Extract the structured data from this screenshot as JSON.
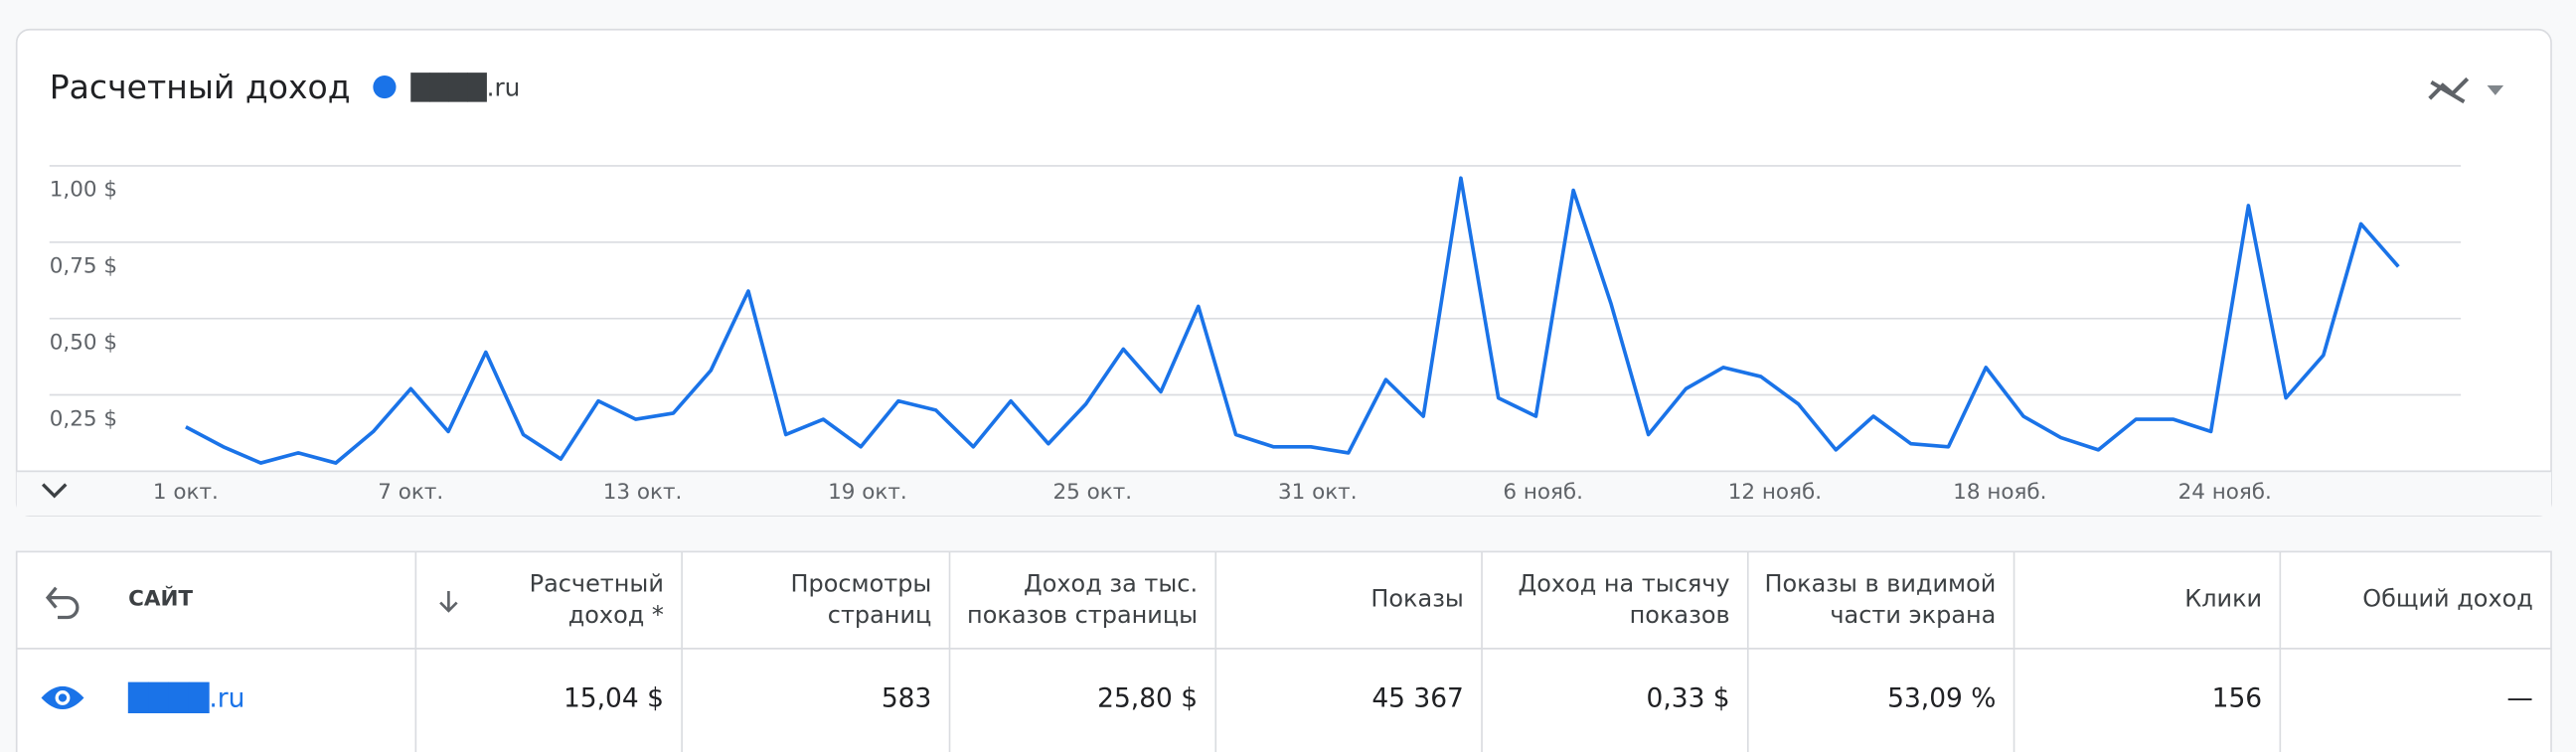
{
  "chart_data": {
    "type": "line",
    "title": "Расчетный доход",
    "categories": [
      "1 окт.",
      null,
      null,
      null,
      null,
      null,
      "7 окт.",
      null,
      null,
      null,
      null,
      null,
      "13 окт.",
      null,
      null,
      null,
      null,
      null,
      "19 окт.",
      null,
      null,
      null,
      null,
      null,
      "25 окт.",
      null,
      null,
      null,
      null,
      null,
      "31 окт.",
      null,
      null,
      null,
      null,
      null,
      "6 нояб.",
      null,
      null,
      null,
      null,
      null,
      "12 нояб.",
      null,
      null,
      null,
      null,
      null,
      "18 нояб.",
      null,
      null,
      null,
      null,
      null,
      "24 нояб.",
      null,
      null,
      null,
      null,
      null
    ],
    "series": [
      {
        "name": "████.ru",
        "color": "#1a73e8",
        "values": [
          0.145,
          0.08,
          0.027,
          0.06,
          0.027,
          0.13,
          0.27,
          0.13,
          0.39,
          0.12,
          0.04,
          0.23,
          0.17,
          0.19,
          0.33,
          0.59,
          0.12,
          0.17,
          0.08,
          0.23,
          0.2,
          0.08,
          0.23,
          0.09,
          0.22,
          0.4,
          0.26,
          0.54,
          0.12,
          0.08,
          0.08,
          0.06,
          0.3,
          0.18,
          0.96,
          0.24,
          0.18,
          0.92,
          0.55,
          0.12,
          0.27,
          0.34,
          0.31,
          0.22,
          0.07,
          0.18,
          0.09,
          0.08,
          0.34,
          0.18,
          0.11,
          0.07,
          0.17,
          0.17,
          0.13,
          0.87,
          0.24,
          0.38,
          0.81,
          0.67
        ]
      }
    ],
    "ylim": [
      0,
      1
    ],
    "yticks": [
      {
        "value": 0.25,
        "label": "0,25 $"
      },
      {
        "value": 0.5,
        "label": "0,50 $"
      },
      {
        "value": 0.75,
        "label": "0,75 $"
      },
      {
        "value": 1,
        "label": "1,00 $"
      }
    ],
    "grid": true
  },
  "table": {
    "headers": [
      [
        "САЙТ"
      ],
      [
        "Расчетный",
        "доход *"
      ],
      [
        "Просмотры",
        "страниц"
      ],
      [
        "Доход за тыс.",
        "показов страницы"
      ],
      [
        "Показы"
      ],
      [
        "Доход на тысячу",
        "показов"
      ],
      [
        "Показы в видимой",
        "части экрана"
      ],
      [
        "Клики"
      ],
      [
        "Общий доход"
      ]
    ],
    "rows": [
      [
        "████.ru",
        "15,04 $",
        "583",
        "25,80 $",
        "45 367",
        "0,33 $",
        "53,09 %",
        "156",
        "—"
      ]
    ]
  }
}
